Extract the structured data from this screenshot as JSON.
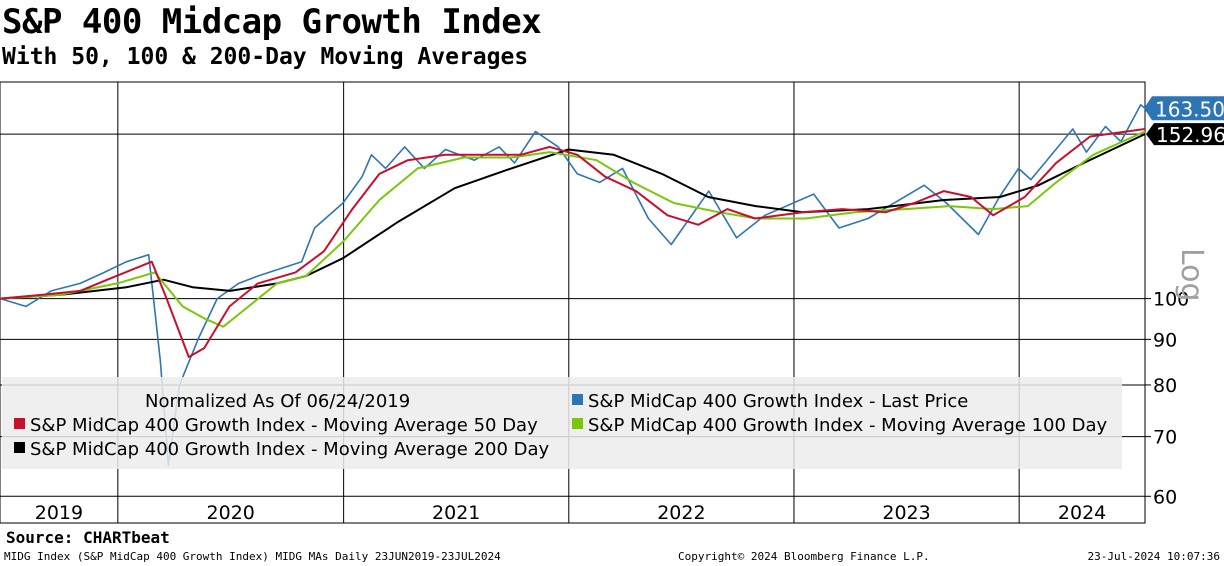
{
  "chart_data": {
    "type": "line",
    "title": "S&P 400 Midcap Growth Index",
    "subtitle": "With 50, 100 & 200-Day Moving Averages",
    "scale": "log",
    "scale_label": "Log",
    "ylim": [
      56,
      175
    ],
    "y_ticks": [
      60,
      70,
      80,
      90,
      100
    ],
    "x_range": [
      "2019-06-24",
      "2024-07-23"
    ],
    "x_ticks": [
      "2019",
      "2020",
      "2021",
      "2022",
      "2023",
      "2024"
    ],
    "grid": true,
    "legend_placement": "bottom",
    "legend_note": "Normalized As Of 06/24/2019",
    "series": [
      {
        "name": "S&P MidCap 400 Growth Index - Last Price",
        "color": "#2e75b6",
        "last_value": "163.50",
        "points": [
          [
            "2019-06-24",
            100
          ],
          [
            "2019-08-05",
            98
          ],
          [
            "2019-09-15",
            102
          ],
          [
            "2019-11-01",
            104
          ],
          [
            "2019-12-10",
            107
          ],
          [
            "2020-01-15",
            110
          ],
          [
            "2020-02-20",
            112
          ],
          [
            "2020-03-10",
            85
          ],
          [
            "2020-03-23",
            65
          ],
          [
            "2020-04-10",
            80
          ],
          [
            "2020-05-10",
            90
          ],
          [
            "2020-06-10",
            100
          ],
          [
            "2020-07-15",
            104
          ],
          [
            "2020-08-15",
            106
          ],
          [
            "2020-09-20",
            108
          ],
          [
            "2020-10-25",
            110
          ],
          [
            "2020-11-15",
            120
          ],
          [
            "2020-12-31",
            128
          ],
          [
            "2021-01-31",
            137
          ],
          [
            "2021-02-15",
            145
          ],
          [
            "2021-03-10",
            140
          ],
          [
            "2021-04-10",
            148
          ],
          [
            "2021-05-12",
            140
          ],
          [
            "2021-06-15",
            147
          ],
          [
            "2021-08-01",
            143
          ],
          [
            "2021-09-10",
            148
          ],
          [
            "2021-10-05",
            142
          ],
          [
            "2021-11-08",
            154
          ],
          [
            "2021-12-15",
            148
          ],
          [
            "2022-01-15",
            138
          ],
          [
            "2022-02-20",
            135
          ],
          [
            "2022-03-29",
            140
          ],
          [
            "2022-05-10",
            123
          ],
          [
            "2022-06-16",
            115
          ],
          [
            "2022-08-16",
            132
          ],
          [
            "2022-09-30",
            117
          ],
          [
            "2022-11-15",
            124
          ],
          [
            "2023-02-02",
            131
          ],
          [
            "2023-03-15",
            120
          ],
          [
            "2023-05-01",
            123
          ],
          [
            "2023-07-31",
            134
          ],
          [
            "2023-09-05",
            128
          ],
          [
            "2023-10-27",
            118
          ],
          [
            "2023-11-30",
            130
          ],
          [
            "2023-12-31",
            140
          ],
          [
            "2024-01-20",
            136
          ],
          [
            "2024-03-28",
            155
          ],
          [
            "2024-04-19",
            146
          ],
          [
            "2024-05-20",
            156
          ],
          [
            "2024-06-14",
            150
          ],
          [
            "2024-07-16",
            165
          ],
          [
            "2024-07-23",
            163.5
          ]
        ]
      },
      {
        "name": "S&P MidCap 400 Growth Index - Moving Average 50 Day",
        "color": "#c8102e",
        "points": [
          [
            "2019-06-24",
            100
          ],
          [
            "2019-09-01",
            101
          ],
          [
            "2019-11-01",
            102
          ],
          [
            "2019-12-15",
            105
          ],
          [
            "2020-02-25",
            110
          ],
          [
            "2020-03-20",
            100
          ],
          [
            "2020-04-25",
            86
          ],
          [
            "2020-05-20",
            88
          ],
          [
            "2020-06-30",
            98
          ],
          [
            "2020-08-15",
            104
          ],
          [
            "2020-10-15",
            107
          ],
          [
            "2020-11-30",
            113
          ],
          [
            "2021-01-15",
            126
          ],
          [
            "2021-02-28",
            138
          ],
          [
            "2021-04-15",
            143
          ],
          [
            "2021-06-15",
            145
          ],
          [
            "2021-08-15",
            145
          ],
          [
            "2021-10-15",
            145
          ],
          [
            "2021-12-01",
            148
          ],
          [
            "2022-01-15",
            145
          ],
          [
            "2022-03-01",
            137
          ],
          [
            "2022-04-20",
            132
          ],
          [
            "2022-06-10",
            124
          ],
          [
            "2022-07-30",
            121
          ],
          [
            "2022-09-15",
            126
          ],
          [
            "2022-10-30",
            123
          ],
          [
            "2023-01-15",
            125
          ],
          [
            "2023-03-20",
            126
          ],
          [
            "2023-05-30",
            125
          ],
          [
            "2023-07-15",
            128
          ],
          [
            "2023-09-01",
            132
          ],
          [
            "2023-10-15",
            130
          ],
          [
            "2023-11-20",
            124
          ],
          [
            "2024-01-10",
            130
          ],
          [
            "2024-03-01",
            142
          ],
          [
            "2024-04-25",
            152
          ],
          [
            "2024-07-23",
            155
          ]
        ]
      },
      {
        "name": "S&P MidCap 400 Growth Index - Moving Average 100 Day",
        "color": "#7ac70c",
        "points": [
          [
            "2019-06-24",
            100
          ],
          [
            "2019-10-01",
            101
          ],
          [
            "2019-12-31",
            104
          ],
          [
            "2020-03-01",
            107
          ],
          [
            "2020-04-15",
            98
          ],
          [
            "2020-05-20",
            95
          ],
          [
            "2020-06-20",
            93
          ],
          [
            "2020-07-31",
            98
          ],
          [
            "2020-09-15",
            104
          ],
          [
            "2020-11-01",
            106
          ],
          [
            "2021-01-01",
            116
          ],
          [
            "2021-02-28",
            129
          ],
          [
            "2021-05-01",
            140
          ],
          [
            "2021-07-15",
            144
          ],
          [
            "2021-09-30",
            144
          ],
          [
            "2021-12-01",
            146
          ],
          [
            "2022-02-15",
            143
          ],
          [
            "2022-04-15",
            135
          ],
          [
            "2022-06-20",
            128
          ],
          [
            "2022-09-01",
            125
          ],
          [
            "2022-11-01",
            123
          ],
          [
            "2023-01-20",
            123
          ],
          [
            "2023-04-10",
            125
          ],
          [
            "2023-06-30",
            126
          ],
          [
            "2023-09-10",
            127
          ],
          [
            "2023-11-20",
            126
          ],
          [
            "2024-01-15",
            127
          ],
          [
            "2024-03-01",
            135
          ],
          [
            "2024-04-30",
            145
          ],
          [
            "2024-07-23",
            154
          ]
        ]
      },
      {
        "name": "S&P MidCap 400 Growth Index - Moving Average 200 Day",
        "color": "#000000",
        "points": [
          [
            "2019-06-24",
            100
          ],
          [
            "2019-10-01",
            101
          ],
          [
            "2020-01-15",
            103
          ],
          [
            "2020-03-15",
            105
          ],
          [
            "2020-05-01",
            103
          ],
          [
            "2020-07-01",
            102
          ],
          [
            "2020-09-15",
            104
          ],
          [
            "2020-11-01",
            106
          ],
          [
            "2020-12-31",
            111
          ],
          [
            "2021-03-31",
            122
          ],
          [
            "2021-06-30",
            133
          ],
          [
            "2021-09-30",
            140
          ],
          [
            "2021-12-31",
            147
          ],
          [
            "2022-03-15",
            145
          ],
          [
            "2022-06-01",
            138
          ],
          [
            "2022-08-15",
            130
          ],
          [
            "2022-10-31",
            127
          ],
          [
            "2023-01-15",
            125
          ],
          [
            "2023-05-01",
            126
          ],
          [
            "2023-09-01",
            129
          ],
          [
            "2023-12-01",
            130
          ],
          [
            "2024-02-01",
            134
          ],
          [
            "2024-04-15",
            142
          ],
          [
            "2024-07-23",
            152.96
          ]
        ]
      }
    ],
    "last_labels": [
      "163.50",
      "152.96"
    ]
  },
  "source": "Source: CHARTbeat",
  "footer": {
    "left": "MIDG Index (S&P MidCap 400 Growth Index) MIDG MAs  Daily 23JUN2019-23JUL2024",
    "middle": "Copyright© 2024 Bloomberg Finance L.P.",
    "right": "23-Jul-2024 10:07:36"
  }
}
